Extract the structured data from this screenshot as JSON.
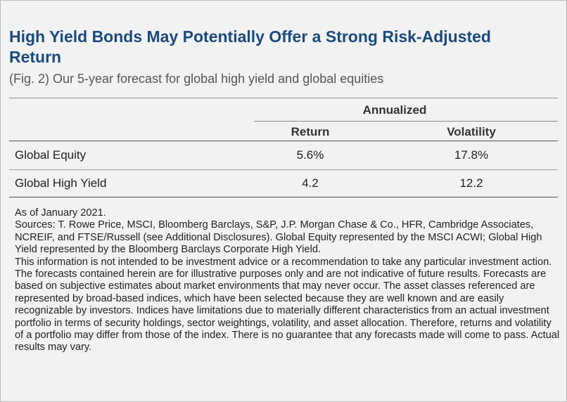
{
  "figure": {
    "title": "High Yield Bonds May Potentially Offer a Strong Risk-Adjusted Return",
    "subtitle": "(Fig. 2) Our 5-year forecast for global high yield and global equities"
  },
  "table": {
    "group_header": "Annualized",
    "columns": [
      "Return",
      "Volatility"
    ],
    "rows": [
      {
        "label": "Global Equity",
        "return": "5.6%",
        "volatility": "17.8%"
      },
      {
        "label": "Global High Yield",
        "return": "4.2",
        "volatility": "12.2"
      }
    ]
  },
  "notes": {
    "as_of": "As of January 2021.",
    "sources": "Sources: T. Rowe Price, MSCI, Bloomberg Barclays, S&P, J.P. Morgan Chase & Co., HFR, Cambridge Associates, NCREIF, and FTSE/Russell (see Additional Disclosures). Global Equity represented by the MSCI ACWI; Global High Yield represented by the Bloomberg Barclays Corporate High Yield.",
    "disclaimer": "This information is not intended to be investment advice or a recommendation to take any particular investment action. The forecasts contained herein are for illustrative purposes only and are not indicative of future results. Forecasts are based on subjective estimates about market environments that may never occur. The asset classes referenced are represented by broad-based indices, which have been selected because they are well known and are easily recognizable by investors. Indices have limitations due to materially different characteristics from an actual investment portfolio in terms of security holdings, sector weightings, volatility, and asset allocation. Therefore, returns and volatility of a portfolio may differ from those of the index. There is no guarantee that any forecasts made will come to pass. Actual results may vary."
  },
  "colors": {
    "title": "#1b4a7c",
    "background": "#f2f2f2",
    "text": "#222222"
  }
}
